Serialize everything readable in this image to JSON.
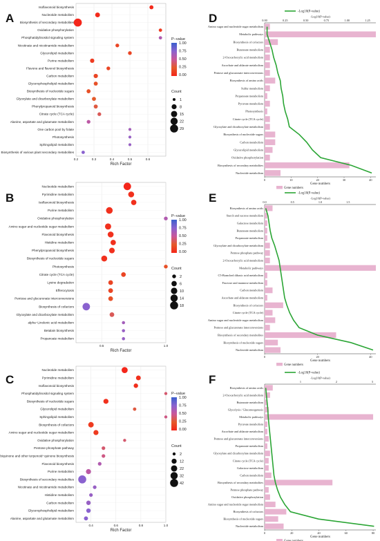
{
  "panel_labels": [
    "A",
    "B",
    "C",
    "D",
    "E",
    "F"
  ],
  "colors": {
    "bubble_scale": [
      "#3a5fcd",
      "#7b68d6",
      "#b05ec4",
      "#e0552a",
      "#f08a24",
      "#f3c20f",
      "#f4d800"
    ],
    "bar": "#e8b4d0",
    "line": "#2aa534"
  },
  "bubble_legend": {
    "color_title": "P−value",
    "color_ticks": [
      "1.00",
      "0.75",
      "0.50",
      "0.25",
      "0.00"
    ],
    "count_title": "Count"
  },
  "bar_legend": {
    "line_label": "-Log10(P-value)",
    "bar_label": "Gene numbers"
  },
  "chart_data": [
    {
      "panel": "A",
      "type": "scatter",
      "xlabel": "Rich Factor",
      "xlim": [
        0.2,
        0.7
      ],
      "xticks": [
        "0.2",
        "0.3",
        "0.4",
        "0.5",
        "0.6"
      ],
      "count_legend": [
        1,
        8,
        15,
        22,
        29
      ],
      "points": [
        {
          "name": "Isoflavonoid biosynthesis",
          "rich": 0.62,
          "p": 0.02,
          "count": 4
        },
        {
          "name": "Nucleotide metabolism",
          "rich": 0.32,
          "p": 0.02,
          "count": 7
        },
        {
          "name": "Biosynthesis of secondary metabolites",
          "rich": 0.21,
          "p": 0.0,
          "count": 29
        },
        {
          "name": "Oxidative phosphorylation",
          "rich": 0.67,
          "p": 0.1,
          "count": 2
        },
        {
          "name": "Phosphatidylinositol signaling system",
          "rich": 0.67,
          "p": 0.6,
          "count": 2
        },
        {
          "name": "Nicotinate and nicotinamide metabolism",
          "rich": 0.43,
          "p": 0.15,
          "count": 3
        },
        {
          "name": "Glycerolipid metabolism",
          "rich": 0.5,
          "p": 0.15,
          "count": 3
        },
        {
          "name": "Purine metabolism",
          "rich": 0.29,
          "p": 0.1,
          "count": 5
        },
        {
          "name": "Flavone and flavonol biosynthesis",
          "rich": 0.38,
          "p": 0.15,
          "count": 3
        },
        {
          "name": "Carbon metabolism",
          "rich": 0.31,
          "p": 0.15,
          "count": 5
        },
        {
          "name": "Glycerophospholipid metabolism",
          "rich": 0.31,
          "p": 0.2,
          "count": 4
        },
        {
          "name": "Biosynthesis of nucleotide sugars",
          "rich": 0.27,
          "p": 0.2,
          "count": 4
        },
        {
          "name": "Glyoxylate and dicarboxylate metabolism",
          "rich": 0.3,
          "p": 0.25,
          "count": 4
        },
        {
          "name": "Phenylpropanoid biosynthesis",
          "rich": 0.31,
          "p": 0.3,
          "count": 4
        },
        {
          "name": "Citrate cycle (TCA cycle)",
          "rich": 0.33,
          "p": 0.35,
          "count": 3
        },
        {
          "name": "Alanine, aspartate and glutamate metabolism",
          "rich": 0.27,
          "p": 0.55,
          "count": 3
        },
        {
          "name": "One carbon pool by folate",
          "rich": 0.5,
          "p": 0.65,
          "count": 1
        },
        {
          "name": "Photosynthesis",
          "rich": 0.5,
          "p": 0.7,
          "count": 1
        },
        {
          "name": "Sphingolipid metabolism",
          "rich": 0.5,
          "p": 0.7,
          "count": 1
        },
        {
          "name": "Biosynthesis of various plant secondary metabolites",
          "rich": 0.24,
          "p": 0.75,
          "count": 2
        }
      ]
    },
    {
      "panel": "B",
      "type": "scatter",
      "xlabel": "Rich Factor",
      "xlim": [
        0.3,
        1.0
      ],
      "xticks": [
        "0.5",
        "1.0"
      ],
      "count_legend": [
        2,
        6,
        10,
        14,
        18
      ],
      "points": [
        {
          "name": "Nucleotide metabolism",
          "rich": 0.7,
          "p": 0.0,
          "count": 15
        },
        {
          "name": "Pyrimidine metabolism",
          "rich": 0.73,
          "p": 0.05,
          "count": 8
        },
        {
          "name": "Isoflavonoid biosynthesis",
          "rich": 0.75,
          "p": 0.05,
          "count": 6
        },
        {
          "name": "Purine metabolism",
          "rich": 0.56,
          "p": 0.05,
          "count": 11
        },
        {
          "name": "Oxidative phosphorylation",
          "rich": 1.0,
          "p": 0.6,
          "count": 2
        },
        {
          "name": "Amino sugar and nucleotide sugar metabolism",
          "rich": 0.55,
          "p": 0.05,
          "count": 9
        },
        {
          "name": "Flavonoid biosynthesis",
          "rich": 0.57,
          "p": 0.05,
          "count": 8
        },
        {
          "name": "Histidine metabolism",
          "rich": 0.59,
          "p": 0.05,
          "count": 6
        },
        {
          "name": "Phenylpropanoid biosynthesis",
          "rich": 0.58,
          "p": 0.05,
          "count": 7
        },
        {
          "name": "Biosynthesis of nucleotide sugars",
          "rich": 0.52,
          "p": 0.05,
          "count": 8
        },
        {
          "name": "Photosynthesis",
          "rich": 1.0,
          "p": 0.2,
          "count": 2
        },
        {
          "name": "Citrate cycle (TCA cycle)",
          "rich": 0.67,
          "p": 0.15,
          "count": 4
        },
        {
          "name": "Lysine degradation",
          "rich": 0.57,
          "p": 0.15,
          "count": 4
        },
        {
          "name": "Efferocytosis",
          "rich": 0.57,
          "p": 0.15,
          "count": 4
        },
        {
          "name": "Pentose and glucuronate interconversions",
          "rich": 0.57,
          "p": 0.2,
          "count": 4
        },
        {
          "name": "Biosynthesis of cofactors",
          "rich": 0.38,
          "p": 0.75,
          "count": 15
        },
        {
          "name": "Glyoxylate and dicarboxylate metabolism",
          "rich": 0.58,
          "p": 0.35,
          "count": 4
        },
        {
          "name": "alpha−Linolenic acid metabolism",
          "rich": 0.67,
          "p": 0.65,
          "count": 1
        },
        {
          "name": "Betalain biosynthesis",
          "rich": 0.67,
          "p": 0.7,
          "count": 1
        },
        {
          "name": "Propanoate metabolism",
          "rich": 0.67,
          "p": 0.7,
          "count": 1
        }
      ]
    },
    {
      "panel": "C",
      "type": "scatter",
      "xlabel": "Rich Factor",
      "xlim": [
        0.28,
        1.0
      ],
      "xticks": [
        "0.4",
        "0.6",
        "0.8",
        "1.0"
      ],
      "count_legend": [
        2,
        12,
        22,
        32,
        42
      ],
      "points": [
        {
          "name": "Nucleotide metabolism",
          "rich": 0.67,
          "p": 0.0,
          "count": 20
        },
        {
          "name": "Pyrimidine metabolism",
          "rich": 0.78,
          "p": 0.05,
          "count": 10
        },
        {
          "name": "Isoflavonoid biosynthesis",
          "rich": 0.76,
          "p": 0.05,
          "count": 8
        },
        {
          "name": "Phosphatidylinositol signaling system",
          "rich": 1.0,
          "p": 0.4,
          "count": 2
        },
        {
          "name": "Biosynthesis of nucleotide sugars",
          "rich": 0.52,
          "p": 0.05,
          "count": 12
        },
        {
          "name": "Glycerolipid metabolism",
          "rich": 0.75,
          "p": 0.3,
          "count": 3
        },
        {
          "name": "Sphingolipid metabolism",
          "rich": 1.0,
          "p": 0.45,
          "count": 2
        },
        {
          "name": "Biosynthesis of cofactors",
          "rich": 0.4,
          "p": 0.1,
          "count": 15
        },
        {
          "name": "Amino sugar and nucleotide sugar metabolism",
          "rich": 0.44,
          "p": 0.1,
          "count": 12
        },
        {
          "name": "Oxidative phosphorylation",
          "rich": 0.67,
          "p": 0.4,
          "count": 2
        },
        {
          "name": "Pentose phosphate pathway",
          "rich": 0.5,
          "p": 0.4,
          "count": 4
        },
        {
          "name": "Ubiquinone and other terpenoid−quinone biosynthesis",
          "rich": 0.5,
          "p": 0.45,
          "count": 4
        },
        {
          "name": "Flavonoid biosynthesis",
          "rich": 0.47,
          "p": 0.6,
          "count": 4
        },
        {
          "name": "Purine metabolism",
          "rich": 0.38,
          "p": 0.55,
          "count": 12
        },
        {
          "name": "Biosynthesis of secondary metabolites",
          "rich": 0.33,
          "p": 0.75,
          "count": 42
        },
        {
          "name": "Nicotinate and nicotinamide metabolism",
          "rich": 0.43,
          "p": 0.7,
          "count": 4
        },
        {
          "name": "Histidine metabolism",
          "rich": 0.4,
          "p": 0.7,
          "count": 4
        },
        {
          "name": "Carbon metabolism",
          "rich": 0.38,
          "p": 0.7,
          "count": 8
        },
        {
          "name": "Glycerophospholipid metabolism",
          "rich": 0.38,
          "p": 0.75,
          "count": 8
        },
        {
          "name": "Alanine, aspartate and glutamate metabolism",
          "rich": 0.36,
          "p": 0.75,
          "count": 6
        }
      ]
    },
    {
      "panel": "D",
      "type": "bar",
      "xlabel": "Gene numbers",
      "top_axis_label": "-Log10(P-value)",
      "bottom_ticks": [
        "0",
        "10",
        "20",
        "30",
        "40"
      ],
      "bottom_max": 42,
      "top_ticks": [
        "0.00",
        "0.25",
        "0.50",
        "0.75",
        "1.00",
        "1.25"
      ],
      "top_max": 1.35,
      "categories": [
        "Amino sugar and nucleotide sugar metabolism",
        "Metabolic pathways",
        "Biosynthesis of cofactors",
        "Butanoate metabolism",
        "2-Oxocarboxylic acid metabolism",
        "Ascorbate and aldarate metabolism",
        "Pentose and glucuronate interconversions",
        "Biosynthesis of amino acids",
        "Sulfur metabolism",
        "Propanoate metabolism",
        "Pyruvate metabolism",
        "Photosynthesis",
        "Citrate cycle (TCA cycle)",
        "Glyoxylate and dicarboxylate metabolism",
        "Biosynthesis of nucleotide sugars",
        "Carbon metabolism",
        "Glycerolipid metabolism",
        "Oxidative phosphorylation",
        "Biosynthesis of secondary metabolites",
        "Nucleotide metabolism"
      ],
      "gene_numbers": [
        2,
        42,
        5,
        2,
        2,
        2,
        2,
        4,
        2,
        1,
        2,
        1,
        2,
        2,
        4,
        4,
        3,
        2,
        32,
        6
      ],
      "neg_log10_p": [
        0.03,
        0.03,
        0.06,
        0.09,
        0.11,
        0.14,
        0.16,
        0.19,
        0.2,
        0.22,
        0.23,
        0.25,
        0.28,
        0.3,
        0.42,
        0.51,
        0.58,
        0.68,
        1.05,
        1.3
      ]
    },
    {
      "panel": "E",
      "type": "bar",
      "xlabel": "Gene numbers",
      "top_axis_label": "-Log10(P-value)",
      "bottom_ticks": [
        "0",
        "20",
        "40"
      ],
      "bottom_max": 42,
      "top_ticks": [
        "0.0",
        "0.5",
        "1.0",
        "1.5"
      ],
      "top_max": 2.0,
      "categories": [
        "Biosynthesis of amino acids",
        "Starch and sucrose metabolism",
        "Galactose metabolism",
        "Butanoate metabolism",
        "Propanoate metabolism",
        "Glyoxylate and dicarboxylate metabolism",
        "Pentose phosphate pathway",
        "2-Oxocarboxylic acid metabolism",
        "Metabolic pathways",
        "C5-Branched dibasic acid metabolism",
        "Fructose and mannose metabolism",
        "Carbon metabolism",
        "Ascorbate and aldarate metabolism",
        "Biosynthesis of cofactors",
        "Citrate cycle (TCA cycle)",
        "Amino sugar and nucleotide sugar metabolism",
        "Pentose and glucuronate interconversions",
        "Biosynthesis of secondary metabolites",
        "Biosynthesis of nucleotide sugars",
        "Nucleotide metabolism"
      ],
      "gene_numbers": [
        3,
        1,
        1,
        1,
        1,
        2,
        2,
        2,
        42,
        1,
        1,
        3,
        1,
        7,
        3,
        4,
        2,
        27,
        5,
        6
      ],
      "neg_log10_p": [
        0.02,
        0.06,
        0.08,
        0.1,
        0.13,
        0.18,
        0.22,
        0.26,
        0.28,
        0.3,
        0.32,
        0.34,
        0.36,
        0.4,
        0.45,
        0.52,
        0.62,
        0.95,
        1.55,
        1.95
      ]
    },
    {
      "panel": "F",
      "type": "bar",
      "xlabel": "Gene numbers",
      "top_axis_label": "-Log10(P-value)",
      "bottom_ticks": [
        "0",
        "20",
        "40",
        "60",
        "80"
      ],
      "bottom_max": 82,
      "top_ticks": [
        "1",
        "2",
        "3"
      ],
      "top_max": 3.1,
      "categories": [
        "Biosynthesis of amino acids",
        "2-Oxocarboxylic acid metabolism",
        "Butanoate metabolism",
        "Glycolysis / Gluconeogenesis",
        "Metabolic pathways",
        "Pyruvate metabolism",
        "Ascorbate and aldarate metabolism",
        "Pentose and glucuronate interconversions",
        "Propanoate metabolism",
        "Glyoxylate and dicarboxylate metabolism",
        "Citrate cycle (TCA cycle)",
        "Galactose metabolism",
        "Carbon metabolism",
        "Biosynthesis of secondary metabolites",
        "Pentose phosphate pathway",
        "Oxidative phosphorylation",
        "Amino sugar and nucleotide sugar metabolism",
        "Biosynthesis of cofactors",
        "Biosynthesis of nucleotide sugars",
        "Nucleotide metabolism"
      ],
      "gene_numbers": [
        6,
        4,
        2,
        3,
        80,
        2,
        2,
        3,
        2,
        4,
        3,
        3,
        5,
        50,
        3,
        4,
        8,
        16,
        10,
        14
      ],
      "neg_log10_p": [
        0.03,
        0.05,
        0.07,
        0.09,
        0.1,
        0.12,
        0.14,
        0.16,
        0.18,
        0.2,
        0.22,
        0.24,
        0.26,
        0.3,
        0.36,
        0.44,
        0.56,
        0.72,
        1.5,
        3.05
      ]
    }
  ]
}
